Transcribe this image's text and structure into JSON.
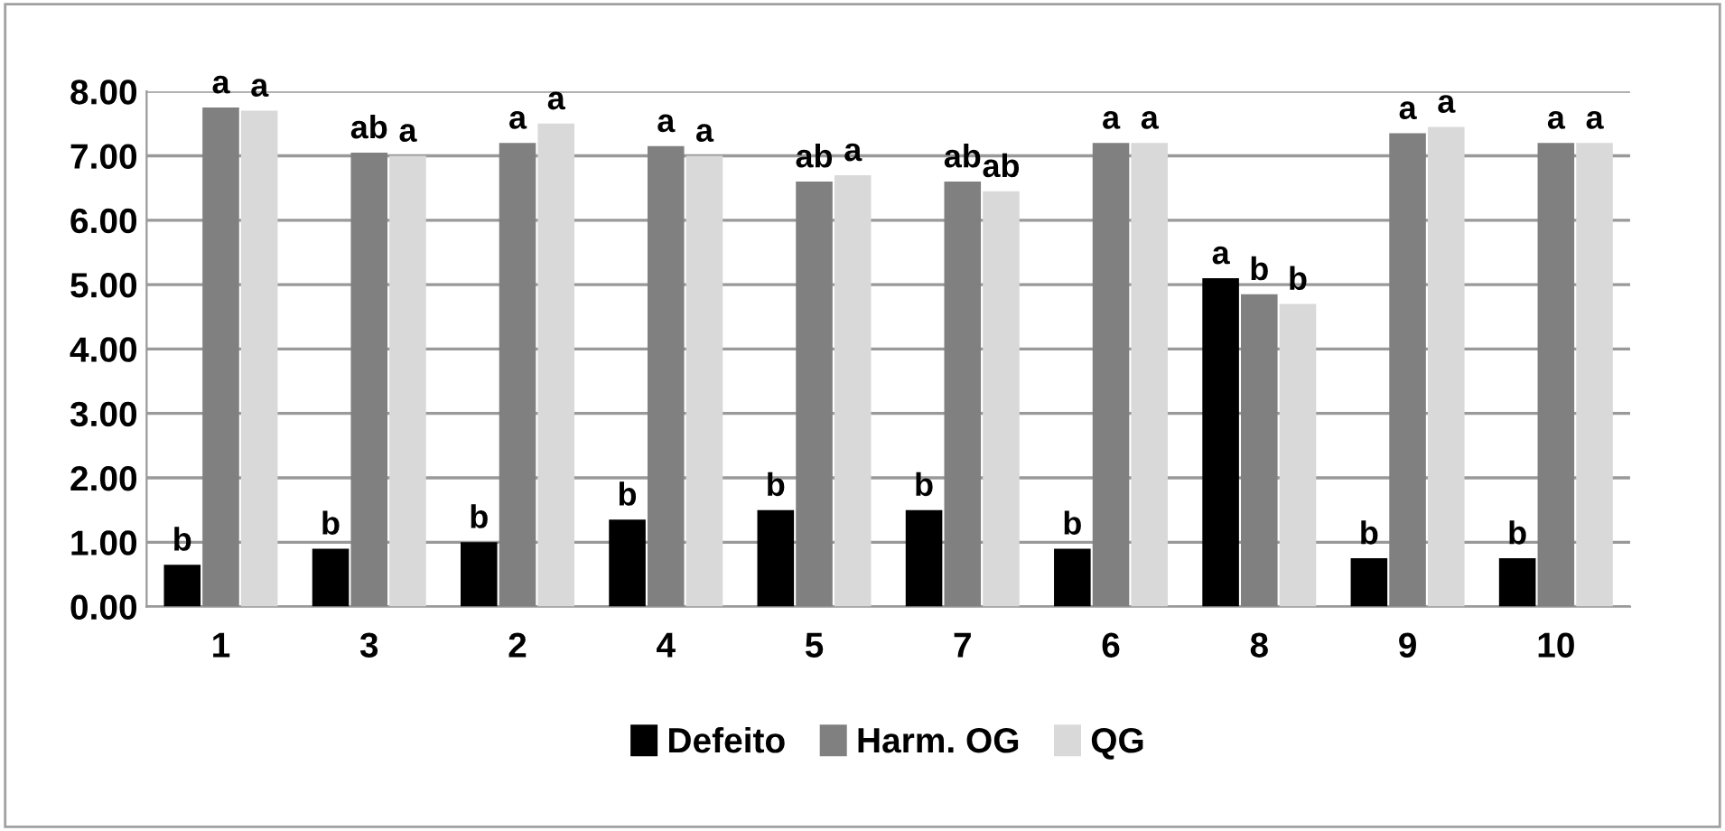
{
  "chart_data": {
    "type": "bar",
    "categories": [
      "1",
      "3",
      "2",
      "4",
      "5",
      "7",
      "6",
      "8",
      "9",
      "10"
    ],
    "series": [
      {
        "name": "Defeito",
        "color": "#000000",
        "values": [
          0.65,
          0.9,
          1.0,
          1.35,
          1.5,
          1.5,
          0.9,
          5.1,
          0.75,
          0.75
        ],
        "value_labels": [
          "b",
          "b",
          "b",
          "b",
          "b",
          "b",
          "b",
          "a",
          "b",
          "b"
        ]
      },
      {
        "name": "Harm. OG",
        "color": "#808080",
        "values": [
          7.75,
          7.05,
          7.2,
          7.15,
          6.6,
          6.6,
          7.2,
          4.85,
          7.35,
          7.2
        ],
        "value_labels": [
          "a",
          "ab",
          "a",
          "a",
          "ab",
          "ab",
          "a",
          "b",
          "a",
          "a"
        ]
      },
      {
        "name": "QG",
        "color": "#d9d9d9",
        "values": [
          7.7,
          7.0,
          7.5,
          7.0,
          6.7,
          6.45,
          7.2,
          4.7,
          7.45,
          7.2
        ],
        "value_labels": [
          "a",
          "a",
          "a",
          "a",
          "a",
          "ab",
          "a",
          "b",
          "a",
          "a"
        ]
      }
    ],
    "ylim": [
      0,
      8
    ],
    "yticks": [
      {
        "value": 0,
        "label": "0.00"
      },
      {
        "value": 1,
        "label": "1.00"
      },
      {
        "value": 2,
        "label": "2.00"
      },
      {
        "value": 3,
        "label": "3.00"
      },
      {
        "value": 4,
        "label": "4.00"
      },
      {
        "value": 5,
        "label": "5.00"
      },
      {
        "value": 6,
        "label": "6.00"
      },
      {
        "value": 7,
        "label": "7.00"
      },
      {
        "value": 8,
        "label": "8.00"
      }
    ],
    "grid": "y",
    "legend": "bottom"
  }
}
